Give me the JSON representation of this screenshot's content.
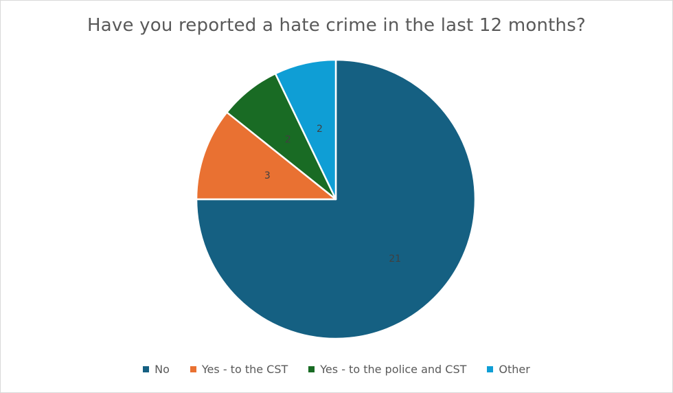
{
  "chart_data": {
    "type": "pie",
    "title": "Have you reported a hate crime in the last 12 months?",
    "categories": [
      "No",
      "Yes - to the CST",
      "Yes - to the police and CST",
      "Other"
    ],
    "values": [
      21,
      3,
      2,
      2
    ],
    "colors": [
      "#156082",
      "#E97132",
      "#196B24",
      "#0F9ED5"
    ],
    "data_labels": [
      "21",
      "3",
      "2",
      "2"
    ],
    "start_angle": "12 o'clock",
    "direction": "clockwise",
    "legend": "bottom"
  }
}
